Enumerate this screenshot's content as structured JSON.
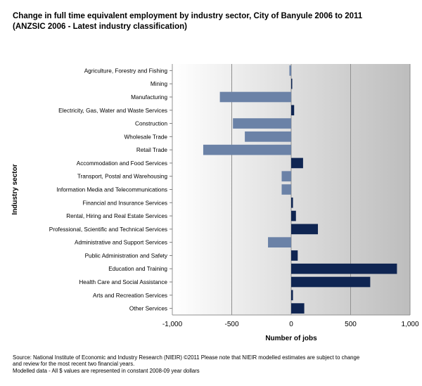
{
  "chart_data": {
    "type": "bar",
    "orientation": "horizontal",
    "title": "Change in full time equivalent employment by industry sector, City of Banyule 2006 to 2011",
    "subtitle": "(ANZSIC 2006 - Latest industry classification)",
    "xlabel": "Number of jobs",
    "ylabel": "Industry sector",
    "xlim": [
      -1000,
      1000
    ],
    "xticks": [
      -1000,
      -500,
      0,
      500,
      1000
    ],
    "xtick_labels": [
      "-1,000",
      "-500",
      "0",
      "500",
      "1,000"
    ],
    "grid": true,
    "negative_color": "#6b82a7",
    "positive_color": "#0f2552",
    "categories": [
      "Agriculture, Forestry and Fishing",
      "Mining",
      "Manufacturing",
      "Electricity, Gas, Water and Waste Services",
      "Construction",
      "Wholesale Trade",
      "Retail Trade",
      "Accommodation and Food Services",
      "Transport, Postal and Warehousing",
      "Information Media and Telecommunications",
      "Financial and Insurance Services",
      "Rental, Hiring and Real Estate Services",
      "Professional, Scientific and Technical Services",
      "Administrative and Support Services",
      "Public Administration and Safety",
      "Education and Training",
      "Health Care and Social Assistance",
      "Arts and Recreation Services",
      "Other Services"
    ],
    "values": [
      -15,
      8,
      -600,
      25,
      -490,
      -390,
      -740,
      100,
      -80,
      -80,
      15,
      40,
      225,
      -195,
      55,
      890,
      665,
      15,
      110
    ]
  },
  "footer": {
    "source_line1": "Source:  National Institute of Economic and Industry Research (NIEIR) ©2011  Please note that NIEIR modelled estimates are subject to change",
    "source_line2": "and review for the most recent two financial years.",
    "source_line3": "Modelled data - All $ values are represented in constant 2008-09 year dollars"
  }
}
